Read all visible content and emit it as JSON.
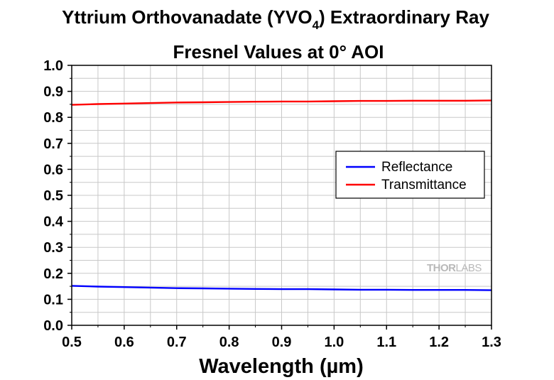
{
  "chart_data": {
    "type": "line",
    "title_main": "Yttrium Orthovanadate (YVO",
    "title_sub": "4",
    "title_end": ") Extraordinary Ray",
    "title_line2": "Fresnel Values at 0° AOI",
    "xlabel": "Wavelength (µm)",
    "ylabel": "",
    "xlim": [
      0.5,
      1.3
    ],
    "ylim": [
      0.0,
      1.0
    ],
    "x_ticks": [
      "0.5",
      "0.6",
      "0.7",
      "0.8",
      "0.9",
      "1.0",
      "1.1",
      "1.2",
      "1.3"
    ],
    "y_ticks": [
      "0.0",
      "0.1",
      "0.2",
      "0.3",
      "0.4",
      "0.5",
      "0.6",
      "0.7",
      "0.8",
      "0.9",
      "1.0"
    ],
    "grid": true,
    "legend_position": "right-middle",
    "watermark_left": "THOR",
    "watermark_right": "LABS",
    "series": [
      {
        "name": "Reflectance",
        "color": "#0000ff",
        "x": [
          0.5,
          0.55,
          0.6,
          0.65,
          0.7,
          0.75,
          0.8,
          0.85,
          0.9,
          0.95,
          1.0,
          1.05,
          1.1,
          1.15,
          1.2,
          1.25,
          1.3
        ],
        "y": [
          0.152,
          0.149,
          0.147,
          0.145,
          0.143,
          0.142,
          0.141,
          0.14,
          0.139,
          0.139,
          0.138,
          0.137,
          0.137,
          0.136,
          0.136,
          0.136,
          0.135
        ]
      },
      {
        "name": "Transmittance",
        "color": "#ff0000",
        "x": [
          0.5,
          0.55,
          0.6,
          0.65,
          0.7,
          0.75,
          0.8,
          0.85,
          0.9,
          0.95,
          1.0,
          1.05,
          1.1,
          1.15,
          1.2,
          1.25,
          1.3
        ],
        "y": [
          0.848,
          0.851,
          0.853,
          0.855,
          0.857,
          0.858,
          0.859,
          0.86,
          0.861,
          0.861,
          0.862,
          0.863,
          0.863,
          0.864,
          0.864,
          0.864,
          0.865
        ]
      }
    ]
  }
}
